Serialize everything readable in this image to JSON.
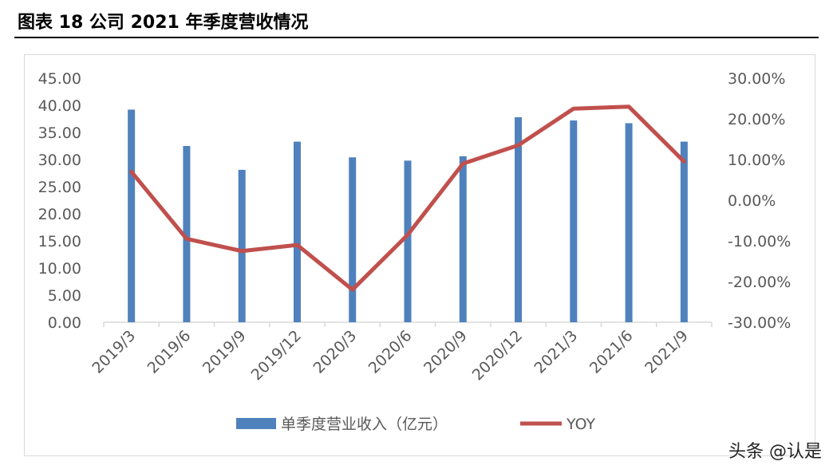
{
  "figure_title": "图表 18 公司 2021 年季度营收情况",
  "watermark": "头条 @认是",
  "colors": {
    "bar": "#4f81bd",
    "line": "#c0504d",
    "axis_text": "#595959",
    "grid": "#d9d9d9"
  },
  "chart_data": {
    "type": "bar",
    "categories": [
      "2019/3",
      "2019/6",
      "2019/9",
      "2019/12",
      "2020/3",
      "2020/6",
      "2020/9",
      "2020/12",
      "2021/3",
      "2021/6",
      "2021/9"
    ],
    "series": [
      {
        "name": "单季度营业收入（亿元）",
        "type": "bar",
        "axis": "left",
        "values": [
          39.2,
          32.5,
          28.1,
          33.3,
          30.4,
          29.8,
          30.6,
          37.8,
          37.2,
          36.7,
          33.3
        ]
      },
      {
        "name": "YOY",
        "type": "line",
        "axis": "right",
        "values": [
          0.07,
          -0.095,
          -0.125,
          -0.11,
          -0.22,
          -0.085,
          0.09,
          0.135,
          0.225,
          0.23,
          0.095
        ]
      }
    ],
    "y_left": {
      "min": 0,
      "max": 45,
      "step": 5,
      "tick_labels": [
        "0.00",
        "5.00",
        "10.00",
        "15.00",
        "20.00",
        "25.00",
        "30.00",
        "35.00",
        "40.00",
        "45.00"
      ]
    },
    "y_right": {
      "min": -0.3,
      "max": 0.3,
      "step": 0.1,
      "tick_labels": [
        "-30.00%",
        "-20.00%",
        "-10.00%",
        "0.00%",
        "10.00%",
        "20.00%",
        "30.00%"
      ]
    },
    "grid": true,
    "legend_position": "bottom"
  }
}
